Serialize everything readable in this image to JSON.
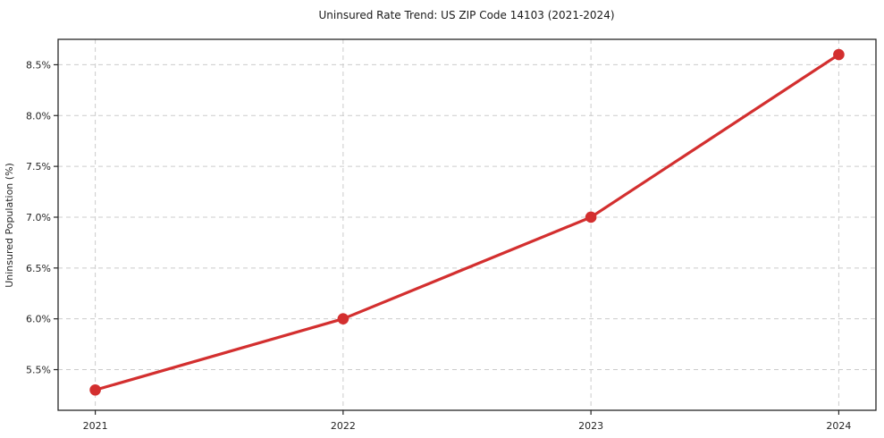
{
  "page": {
    "title": "Uninsured Rate Trend: US ZIP Code 14103 (2021-2024)"
  },
  "chart_data": {
    "type": "line",
    "title": "Uninsured Rate Trend: US ZIP Code 14103 (2021-2024)",
    "xlabel": "",
    "ylabel": "Uninsured Population (%)",
    "x": [
      2021,
      2022,
      2023,
      2024
    ],
    "x_tick_labels": [
      "2021",
      "2022",
      "2023",
      "2024"
    ],
    "values": [
      5.3,
      6.0,
      7.0,
      8.6
    ],
    "y_ticks": [
      5.5,
      6.0,
      6.5,
      7.0,
      7.5,
      8.0,
      8.5
    ],
    "y_tick_labels": [
      "5.5%",
      "6.0%",
      "6.5%",
      "7.0%",
      "7.5%",
      "8.0%",
      "8.5%"
    ],
    "xlim": [
      2020.85,
      2024.15
    ],
    "ylim": [
      5.1,
      8.75
    ],
    "grid": true,
    "grid_style": "dashed",
    "legend": "none",
    "colors": {
      "line": "#d32f2f",
      "marker": "#d32f2f",
      "grid": "#cccccc",
      "axis": "#262626",
      "text": "#262626",
      "background": "#ffffff"
    },
    "marker": "circle"
  }
}
